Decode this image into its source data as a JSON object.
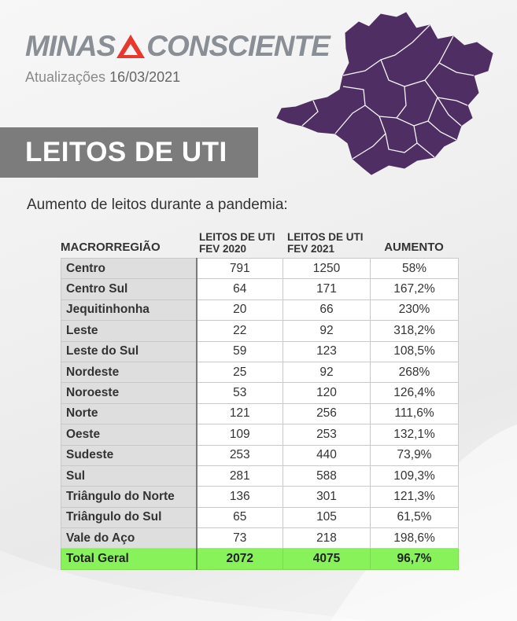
{
  "brand": {
    "left_word": "MINAS",
    "right_word": "CONSCIENTE",
    "accent_color": "#e8372c",
    "text_color": "#8a8f96"
  },
  "updated": {
    "label": "Atualizações",
    "date": "16/03/2021"
  },
  "title": "LEITOS DE UTI",
  "subtitle": "Aumento de leitos durante a pandemia:",
  "map": {
    "fill_color": "#4f2f63",
    "border_color": "#ffffff"
  },
  "table": {
    "headers": {
      "region": "MACRORREGIÃO",
      "c1_line1": "LEITOS DE UTI",
      "c1_line2": "FEV 2020",
      "c2_line1": "LEITOS DE UTI",
      "c2_line2": "FEV 2021",
      "c3": "AUMENTO"
    },
    "rows": [
      {
        "region": "Centro",
        "fev2020": "791",
        "fev2021": "1250",
        "increase": "58%"
      },
      {
        "region": "Centro Sul",
        "fev2020": "64",
        "fev2021": "171",
        "increase": "167,2%"
      },
      {
        "region": "Jequitinhonha",
        "fev2020": "20",
        "fev2021": "66",
        "increase": "230%"
      },
      {
        "region": "Leste",
        "fev2020": "22",
        "fev2021": "92",
        "increase": "318,2%"
      },
      {
        "region": "Leste do Sul",
        "fev2020": "59",
        "fev2021": "123",
        "increase": "108,5%"
      },
      {
        "region": "Nordeste",
        "fev2020": "25",
        "fev2021": "92",
        "increase": "268%"
      },
      {
        "region": "Noroeste",
        "fev2020": "53",
        "fev2021": "120",
        "increase": "126,4%"
      },
      {
        "region": "Norte",
        "fev2020": "121",
        "fev2021": "256",
        "increase": "111,6%"
      },
      {
        "region": "Oeste",
        "fev2020": "109",
        "fev2021": "253",
        "increase": "132,1%"
      },
      {
        "region": "Sudeste",
        "fev2020": "253",
        "fev2021": "440",
        "increase": "73,9%"
      },
      {
        "region": "Sul",
        "fev2020": "281",
        "fev2021": "588",
        "increase": "109,3%"
      },
      {
        "region": "Triângulo do Norte",
        "fev2020": "136",
        "fev2021": "301",
        "increase": "121,3%"
      },
      {
        "region": "Triângulo do Sul",
        "fev2020": "65",
        "fev2021": "105",
        "increase": "61,5%"
      },
      {
        "region": "Vale do Aço",
        "fev2020": "73",
        "fev2021": "218",
        "increase": "198,6%"
      }
    ],
    "total": {
      "region": "Total Geral",
      "fev2020": "2072",
      "fev2021": "4075",
      "increase": "96,7%"
    },
    "total_color": "#88f25a"
  }
}
